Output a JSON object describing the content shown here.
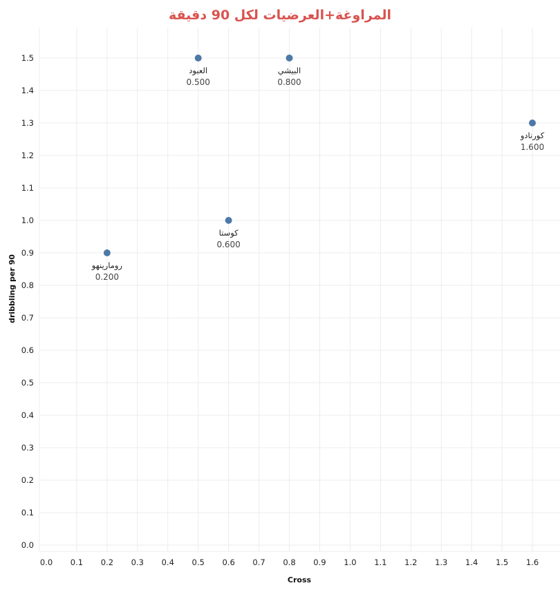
{
  "chart_data": {
    "type": "scatter",
    "title": "المراوغة+العرضيات لكل 90 دقيقة",
    "xlabel": "Cross",
    "ylabel": "dribbling per 90",
    "xlim": [
      0,
      1.6
    ],
    "ylim": [
      0,
      1.5
    ],
    "x_ticks": [
      "0.0",
      "0.1",
      "0.2",
      "0.3",
      "0.4",
      "0.5",
      "0.6",
      "0.7",
      "0.8",
      "0.9",
      "1.0",
      "1.1",
      "1.2",
      "1.3",
      "1.4",
      "1.5",
      "1.6"
    ],
    "y_ticks": [
      "0.0",
      "0.1",
      "0.2",
      "0.3",
      "0.4",
      "0.5",
      "0.6",
      "0.7",
      "0.8",
      "0.9",
      "1.0",
      "1.1",
      "1.2",
      "1.3",
      "1.4",
      "1.5"
    ],
    "grid": true,
    "points": [
      {
        "label": "العبود",
        "x": 0.5,
        "y": 1.5,
        "value_label": "0.500"
      },
      {
        "label": "البيشي",
        "x": 0.8,
        "y": 1.5,
        "value_label": "0.800"
      },
      {
        "label": "كورنادو",
        "x": 1.6,
        "y": 1.3,
        "value_label": "1.600"
      },
      {
        "label": "كوستا",
        "x": 0.6,
        "y": 1.0,
        "value_label": "0.600"
      },
      {
        "label": "رومارينهو",
        "x": 0.2,
        "y": 0.9,
        "value_label": "0.200"
      }
    ]
  },
  "colors": {
    "title": "#d9534f",
    "marker": "#4e79a7",
    "grid": "#ececec"
  }
}
